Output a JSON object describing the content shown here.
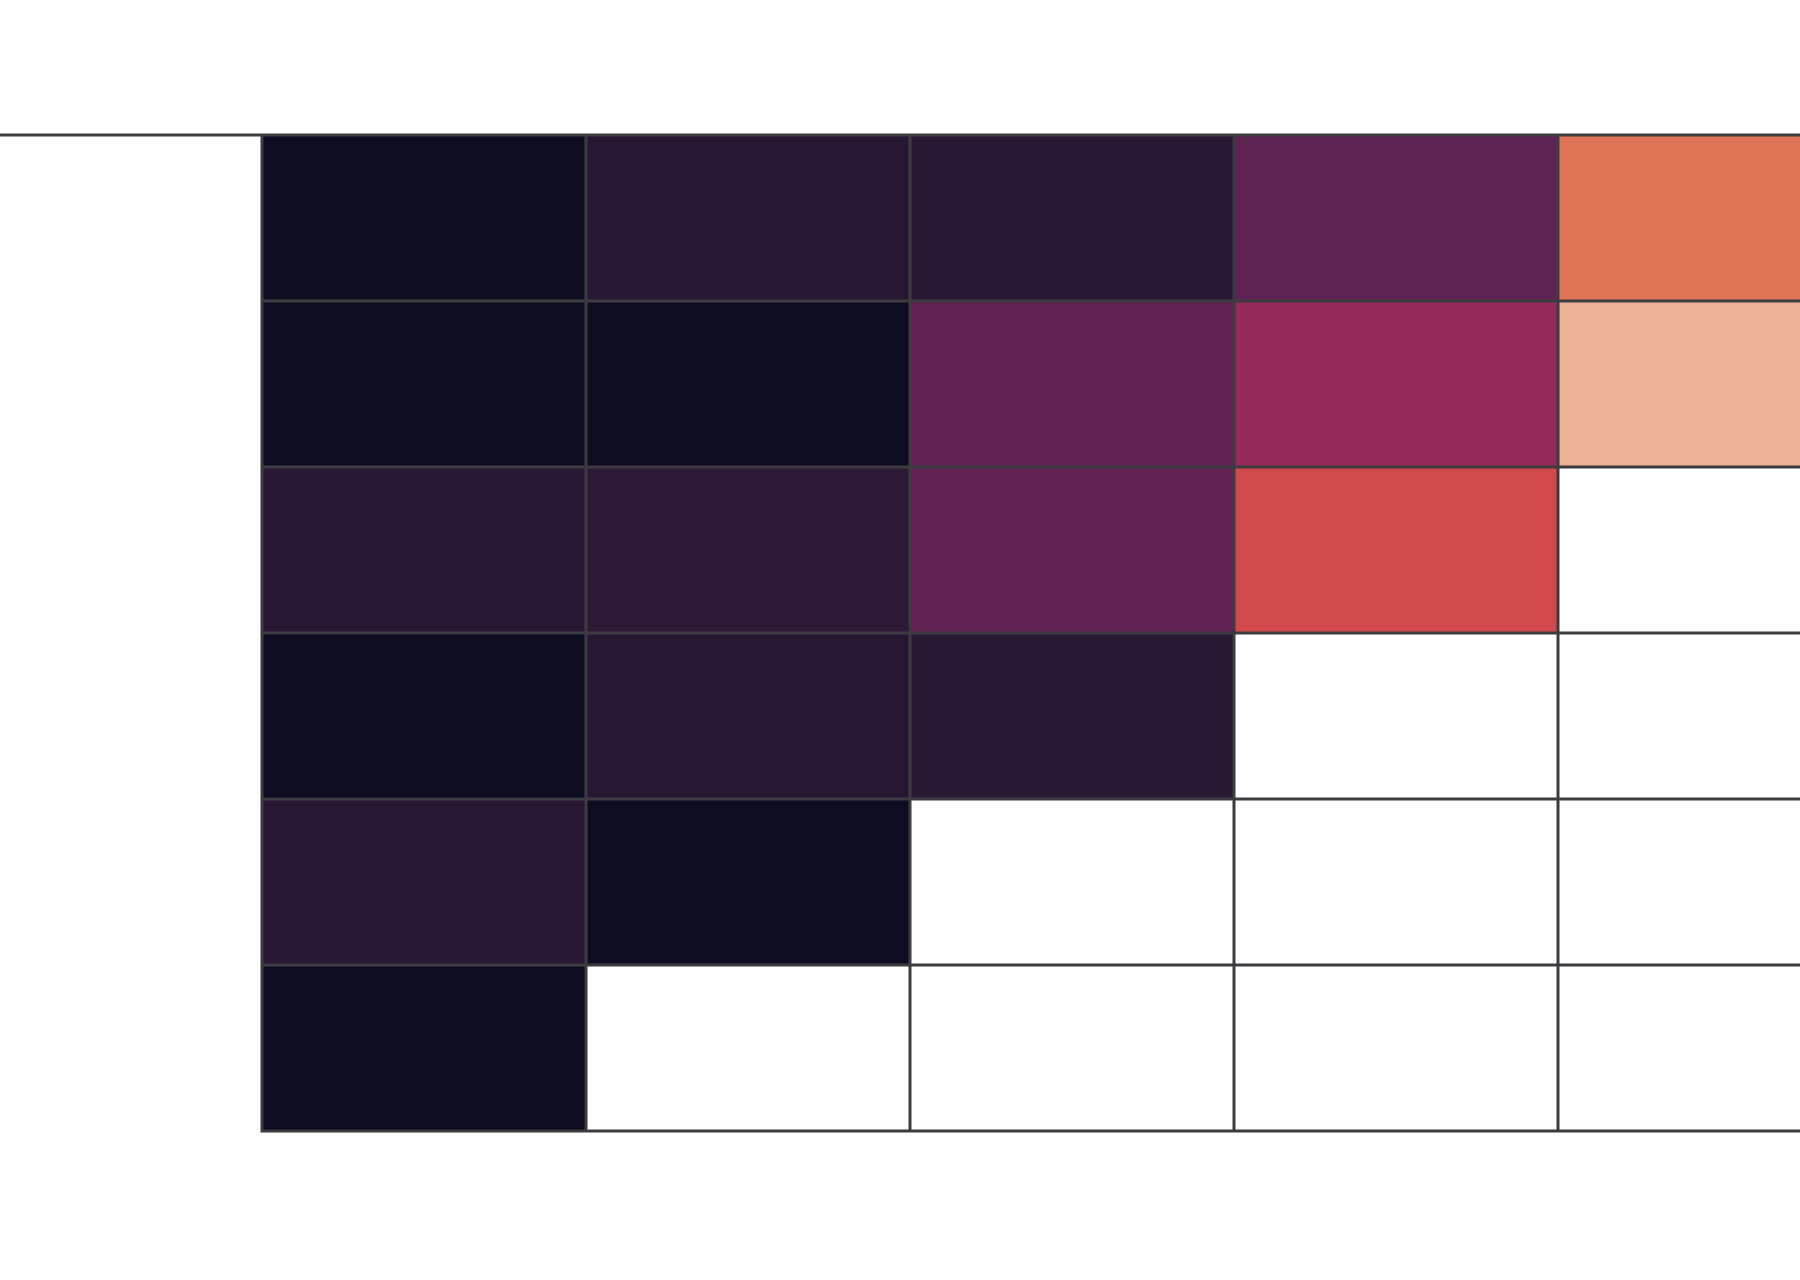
{
  "chart_data": {
    "type": "heatmap",
    "cells": [
      [
        "#0e0c21",
        "#281733",
        "#2a1935",
        "#5f2353",
        "#e07456"
      ],
      [
        "#0e0c21",
        "#0e0c21",
        "#622354",
        "#962a59",
        "#ebb295"
      ],
      [
        "#281733",
        "#2b1936",
        "#622354",
        "#d1494b",
        null
      ],
      [
        "#0e0c21",
        "#281733",
        "#2a1935",
        null,
        null
      ],
      [
        "#281733",
        "#0e0c21",
        null,
        null,
        null
      ],
      [
        "#0e0c21",
        null,
        null,
        null,
        null
      ]
    ],
    "border_color": "#3c3c40"
  }
}
